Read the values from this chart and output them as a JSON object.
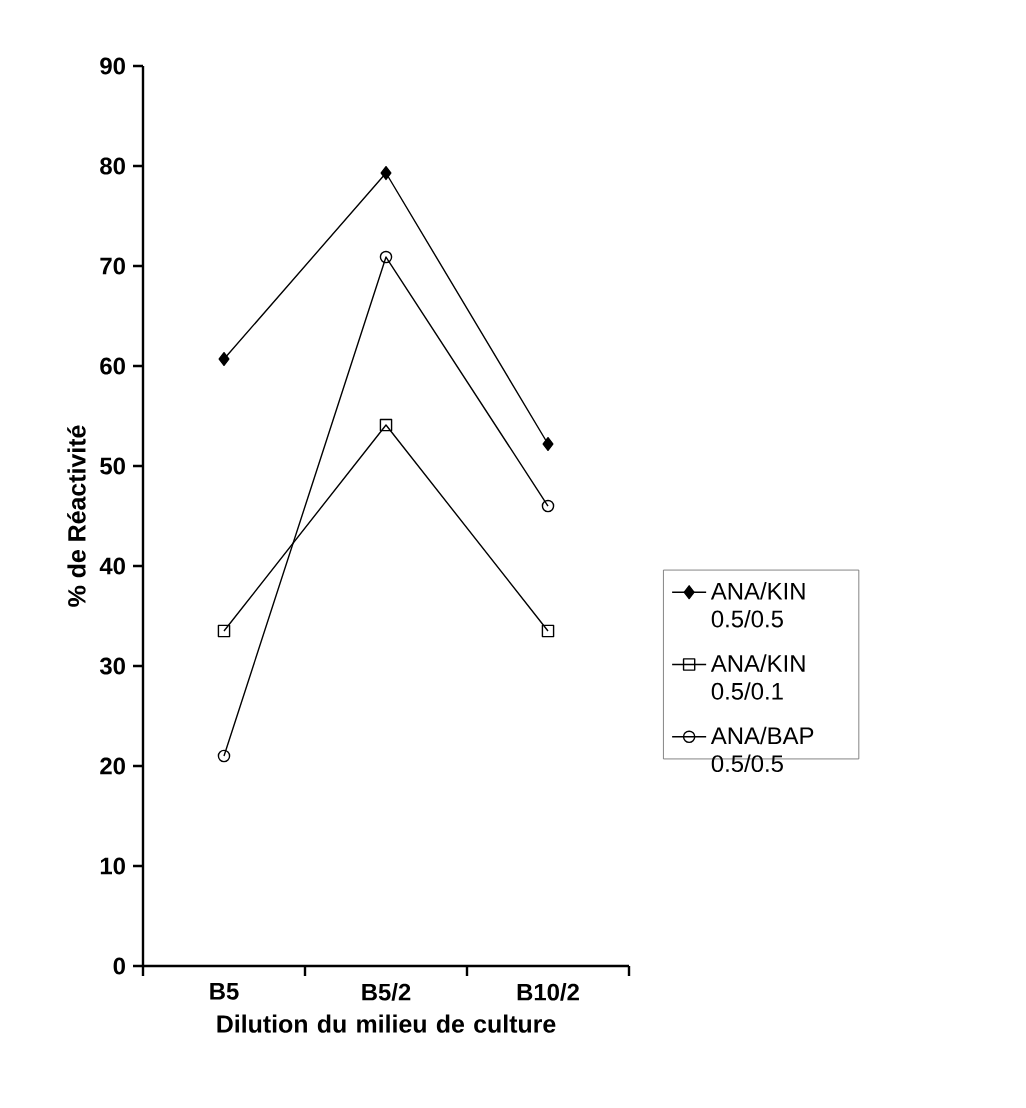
{
  "chart_data": {
    "type": "line",
    "ylabel": "% de Réactivité",
    "xlabel": "Dilution du milieu de culture",
    "categories": [
      "B5",
      "B5/2",
      "B10/2"
    ],
    "series": [
      {
        "name": "ANA/KIN 0.5/0.5",
        "color": "#000000",
        "marker": "diamond",
        "values": [
          60.7,
          79.3,
          52.2
        ]
      },
      {
        "name": "ANA/KIN 0.5/0.1",
        "color": "#000000",
        "marker": "square",
        "values": [
          33.5,
          54.1,
          33.5
        ]
      },
      {
        "name": "ANA/BAP 0.5/0.5",
        "color": "#000000",
        "marker": "circle",
        "values": [
          21.0,
          70.9,
          46.0
        ]
      }
    ],
    "ylim": [
      0,
      90
    ],
    "yticks": [
      0,
      10,
      20,
      30,
      40,
      50,
      60,
      70,
      80,
      90
    ],
    "legend": "right",
    "grid": false,
    "line_style": "solid"
  }
}
